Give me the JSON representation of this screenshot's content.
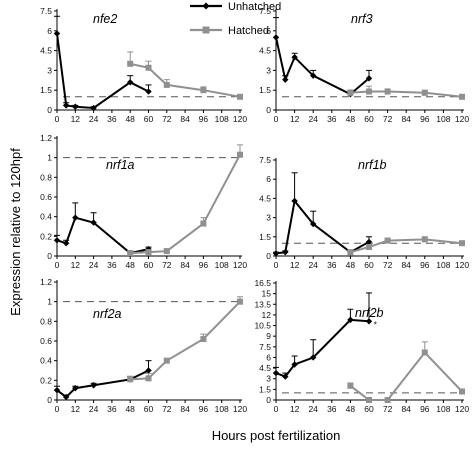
{
  "xlabel": "Hours post fertilization",
  "ylabel": "Expression relative to 120hpf",
  "legend": {
    "unhatched": "Unhatched",
    "hatched": "Hatched"
  },
  "colors": {
    "unhatched": "#000000",
    "hatched": "#909090",
    "reference": "#555555"
  },
  "x_ticks": [
    0,
    12,
    24,
    36,
    48,
    60,
    72,
    84,
    96,
    108,
    120
  ],
  "chart_data": [
    {
      "type": "line",
      "title": "nfe2",
      "xlim": [
        0,
        120
      ],
      "ylim": [
        0,
        7.5
      ],
      "y_ticks": [
        0,
        1.5,
        3,
        4.5,
        6,
        7.5
      ],
      "y_tick_labels": [
        "0",
        "1.5",
        "3",
        "4.5",
        "6",
        "7.5"
      ],
      "reference_line": 1,
      "legend_location": "upper-right",
      "series": [
        {
          "name": "Unhatched",
          "x": [
            0,
            6,
            12,
            24,
            48,
            60
          ],
          "y": [
            5.8,
            0.35,
            0.25,
            0.15,
            2.1,
            1.4
          ],
          "err": [
            1.3,
            0.2,
            0.1,
            0.1,
            0.5,
            0.5
          ]
        },
        {
          "name": "Hatched",
          "x": [
            48,
            60,
            72,
            96,
            120
          ],
          "y": [
            3.5,
            3.2,
            1.9,
            1.5,
            1.0
          ],
          "err": [
            0.9,
            0.5,
            0.4,
            0.25,
            0.1
          ]
        }
      ]
    },
    {
      "type": "line",
      "title": "nrf3",
      "xlim": [
        0,
        120
      ],
      "ylim": [
        0,
        7.5
      ],
      "y_ticks": [
        0,
        1.5,
        3,
        4.5,
        6,
        7.5
      ],
      "y_tick_labels": [
        "0",
        "1.5",
        "3",
        "4.5",
        "6",
        "7.5"
      ],
      "reference_line": 1,
      "series": [
        {
          "name": "Unhatched",
          "x": [
            0,
            6,
            12,
            24,
            48,
            60
          ],
          "y": [
            5.5,
            2.3,
            4.0,
            2.6,
            1.2,
            2.4
          ],
          "err": [
            1.5,
            0.3,
            0.3,
            0.4,
            0.3,
            0.6
          ]
        },
        {
          "name": "Hatched",
          "x": [
            48,
            60,
            72,
            96,
            120
          ],
          "y": [
            1.3,
            1.4,
            1.4,
            1.3,
            1.0
          ],
          "err": [
            0.2,
            0.4,
            0.2,
            0.2,
            0.1
          ]
        }
      ]
    },
    {
      "type": "line",
      "title": "nrf1a",
      "xlim": [
        0,
        120
      ],
      "ylim": [
        0,
        1.2
      ],
      "y_ticks": [
        0,
        0.2,
        0.4,
        0.6,
        0.8,
        1,
        1.2
      ],
      "y_tick_labels": [
        "0",
        "0.2",
        "0.4",
        "0.6",
        "0.8",
        "1",
        "1.2"
      ],
      "reference_line": 1,
      "series": [
        {
          "name": "Unhatched",
          "x": [
            0,
            6,
            12,
            24,
            48,
            60
          ],
          "y": [
            0.16,
            0.13,
            0.39,
            0.34,
            0.03,
            0.07
          ],
          "err": [
            0.05,
            0.03,
            0.15,
            0.1,
            0.02,
            0.02
          ]
        },
        {
          "name": "Hatched",
          "x": [
            48,
            60,
            72,
            96,
            120
          ],
          "y": [
            0.03,
            0.04,
            0.05,
            0.33,
            1.03
          ],
          "err": [
            0.02,
            0.01,
            0.02,
            0.06,
            0.1
          ]
        }
      ]
    },
    {
      "type": "line",
      "title": "nrf1b",
      "xlim": [
        0,
        120
      ],
      "ylim": [
        0,
        7.5
      ],
      "y_ticks": [
        0,
        1.5,
        3,
        4.5,
        6,
        7.5
      ],
      "y_tick_labels": [
        "0",
        "1.5",
        "3",
        "4.5",
        "6",
        "7.5"
      ],
      "reference_line": 1,
      "series": [
        {
          "name": "Unhatched",
          "x": [
            0,
            6,
            12,
            24,
            48,
            60
          ],
          "y": [
            0.2,
            0.3,
            4.3,
            2.5,
            0.3,
            1.1
          ],
          "err": [
            0.1,
            0.1,
            2.2,
            1.0,
            0.1,
            0.4
          ]
        },
        {
          "name": "Hatched",
          "x": [
            48,
            60,
            72,
            96,
            120
          ],
          "y": [
            0.3,
            0.7,
            1.2,
            1.3,
            1.0
          ],
          "err": [
            0.1,
            0.2,
            0.2,
            0.2,
            0.1
          ]
        }
      ]
    },
    {
      "type": "line",
      "title": "nrf2a",
      "xlim": [
        0,
        120
      ],
      "ylim": [
        0,
        1.2
      ],
      "y_ticks": [
        0,
        0.2,
        0.4,
        0.6,
        0.8,
        1,
        1.2
      ],
      "y_tick_labels": [
        "0",
        "0.2",
        "0.4",
        "0.6",
        "0.8",
        "1",
        "1.2"
      ],
      "reference_line": 1,
      "series": [
        {
          "name": "Unhatched",
          "x": [
            0,
            6,
            12,
            24,
            48,
            60
          ],
          "y": [
            0.1,
            0.03,
            0.12,
            0.15,
            0.21,
            0.3
          ],
          "err": [
            0.04,
            0.02,
            0.02,
            0.02,
            0.03,
            0.1
          ]
        },
        {
          "name": "Hatched",
          "x": [
            48,
            60,
            72,
            96,
            120
          ],
          "y": [
            0.21,
            0.22,
            0.4,
            0.62,
            1.0
          ],
          "err": [
            0.03,
            0.05,
            0.02,
            0.05,
            0.05
          ]
        }
      ]
    },
    {
      "type": "line",
      "title": "nrf2b",
      "xlim": [
        0,
        120
      ],
      "ylim": [
        0,
        16.5
      ],
      "y_ticks": [
        0,
        1.5,
        3,
        4.5,
        6,
        7.5,
        9,
        10.5,
        12,
        13.5,
        15,
        16.5
      ],
      "y_tick_labels": [
        "0",
        "1.5",
        "3",
        "4.5",
        "6",
        "7.5",
        "9",
        "10.5",
        "12",
        "13.5",
        "15",
        "16.5"
      ],
      "reference_line": 1,
      "annotation": {
        "text": "*",
        "x": 63,
        "y": 10.8
      },
      "series": [
        {
          "name": "Unhatched",
          "x": [
            0,
            6,
            12,
            24,
            48,
            60
          ],
          "y": [
            3.8,
            3.3,
            5.0,
            6.0,
            11.3,
            11.1
          ],
          "err": [
            0.8,
            0.5,
            1.2,
            2.5,
            1.5,
            4.0
          ]
        },
        {
          "name": "Hatched",
          "x": [
            48,
            60,
            72,
            96,
            120
          ],
          "y": [
            2.0,
            0.0,
            0.0,
            6.7,
            1.2
          ],
          "err": [
            0.4,
            0.3,
            0.2,
            1.5,
            0.2
          ]
        }
      ]
    }
  ]
}
